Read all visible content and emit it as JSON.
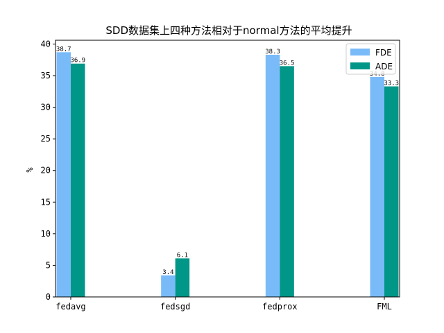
{
  "colors": {
    "FDE": "#79bbf9",
    "ADE": "#009688"
  },
  "chart_data": {
    "type": "bar",
    "title": "SDD数据集上四种方法相对于normal方法的平均提升",
    "xlabel": "",
    "ylabel": "%",
    "categories": [
      "fedavg",
      "fedsgd",
      "fedprox",
      "FML"
    ],
    "series": [
      {
        "name": "FDE",
        "values": [
          38.7,
          3.4,
          38.3,
          34.8
        ],
        "labels": [
          "38.7",
          "3.4",
          "38.3",
          "34.8"
        ]
      },
      {
        "name": "ADE",
        "values": [
          36.9,
          6.1,
          36.5,
          33.3
        ],
        "labels": [
          "36.9",
          "6.1",
          "36.5",
          "33.3"
        ]
      }
    ],
    "ylim": [
      0,
      40.6
    ],
    "yticks": [
      0,
      5,
      10,
      15,
      20,
      25,
      30,
      35,
      40
    ],
    "grid": false,
    "legend_position": "top-right"
  }
}
